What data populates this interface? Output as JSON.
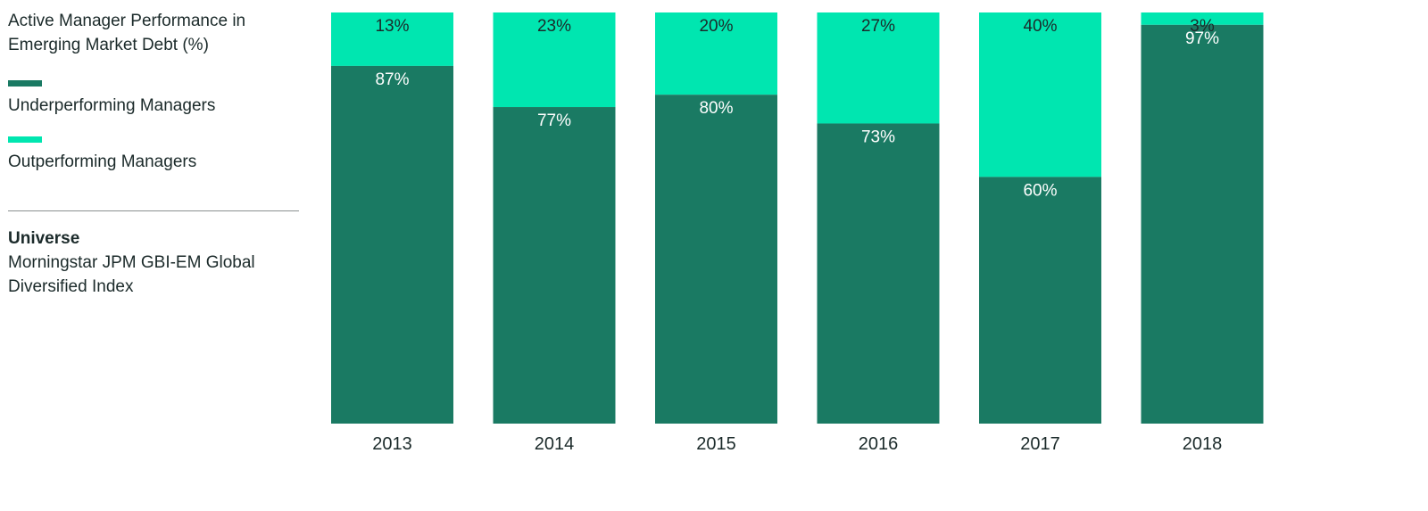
{
  "sidebar": {
    "title_line1": "Active Manager Performance in",
    "title_line2": "Emerging Market Debt (%)",
    "legend": [
      {
        "label": "Underperforming Managers",
        "color": "#1a7a63"
      },
      {
        "label": "Outperforming Managers",
        "color": "#00e6b0"
      }
    ],
    "universe_heading": "Universe",
    "universe_line1": "Morningstar JPM GBI-EM Global",
    "universe_line2": "Diversified Index"
  },
  "chart_data": {
    "type": "bar",
    "stacked": true,
    "title": "Active Manager Performance in Emerging Market Debt (%)",
    "categories": [
      "2013",
      "2014",
      "2015",
      "2016",
      "2017",
      "2018"
    ],
    "series": [
      {
        "name": "Underperforming Managers",
        "values": [
          87,
          77,
          80,
          73,
          60,
          97
        ],
        "labels": [
          "87%",
          "77%",
          "80%",
          "73%",
          "60%",
          "97%"
        ],
        "color": "#1a7a63",
        "label_color": "#ffffff"
      },
      {
        "name": "Outperforming Managers",
        "values": [
          13,
          23,
          20,
          27,
          40,
          3
        ],
        "labels": [
          "13%",
          "23%",
          "20%",
          "27%",
          "40%",
          "3%"
        ],
        "color": "#00e6b0",
        "label_color": "#1b2a2a"
      }
    ],
    "ylim": [
      0,
      100
    ],
    "grid": false,
    "legend_position": "left"
  }
}
